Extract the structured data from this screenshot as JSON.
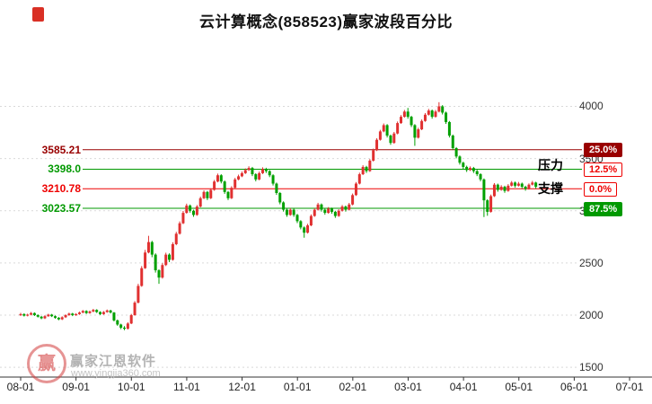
{
  "title": "云计算概念(858523)赢家波段百分比",
  "annotations": {
    "resistance": "压力",
    "support": "支撑"
  },
  "watermark": {
    "logo_char": "赢",
    "brand": "赢家江恩软件",
    "url": "www.yingjia360.com"
  },
  "chart_data": {
    "type": "candlestick",
    "title": "云计算概念(858523)赢家波段百分比",
    "up_color": "#e03030",
    "down_color": "#00a000",
    "grid_color": "#d9d9d9",
    "axis_color": "#333333",
    "y_ticks": [
      4000,
      3500,
      3000,
      2500,
      2000,
      1500
    ],
    "x_tick_labels": [
      "08-01",
      "09-01",
      "10-01",
      "11-01",
      "12-01",
      "01-01",
      "02-01",
      "03-01",
      "04-01",
      "05-01",
      "06-01",
      "07-01"
    ],
    "ylim": [
      1450,
      4200
    ],
    "levels": [
      {
        "label": "3585.21",
        "price": 3585.21,
        "pct": "25.0%",
        "line_color": "#990000",
        "tag_bg": "#990000",
        "tag_text": "#ffffff",
        "tag_border": "#990000"
      },
      {
        "label": "3398.0",
        "price": 3398.0,
        "pct": "12.5%",
        "line_color": "#009900",
        "tag_bg": "#ffffff",
        "tag_text": "#ee0000",
        "tag_border": "#ee0000"
      },
      {
        "label": "3210.78",
        "price": 3210.78,
        "pct": "0.0%",
        "line_color": "#ee0000",
        "tag_bg": "#ffffff",
        "tag_text": "#ee0000",
        "tag_border": "#ee0000"
      },
      {
        "label": "3023.57",
        "price": 3023.57,
        "pct": "87.5%",
        "line_color": "#009900",
        "tag_bg": "#009900",
        "tag_text": "#ffffff",
        "tag_border": "#009900"
      }
    ],
    "ohlc": [
      [
        2000,
        2022,
        1992,
        2010
      ],
      [
        2010,
        2018,
        1987,
        1995
      ],
      [
        1995,
        2014,
        1988,
        2005
      ],
      [
        2005,
        2030,
        1998,
        2020
      ],
      [
        2020,
        2026,
        1992,
        2000
      ],
      [
        2000,
        2008,
        1977,
        1985
      ],
      [
        1985,
        1992,
        1961,
        1970
      ],
      [
        1970,
        1999,
        1963,
        1990
      ],
      [
        1990,
        2013,
        1984,
        2005
      ],
      [
        2005,
        2012,
        1982,
        1990
      ],
      [
        1990,
        1997,
        1966,
        1975
      ],
      [
        1975,
        1982,
        1951,
        1960
      ],
      [
        1960,
        1989,
        1953,
        1980
      ],
      [
        1980,
        2008,
        1973,
        2000
      ],
      [
        2000,
        2024,
        1994,
        2015
      ],
      [
        2015,
        2022,
        1991,
        2000
      ],
      [
        2000,
        2019,
        1993,
        2010
      ],
      [
        2010,
        2034,
        2003,
        2025
      ],
      [
        2025,
        2049,
        2018,
        2040
      ],
      [
        2040,
        2047,
        2011,
        2020
      ],
      [
        2020,
        2044,
        2013,
        2035
      ],
      [
        2035,
        2060,
        2028,
        2050
      ],
      [
        2050,
        2057,
        2021,
        2030
      ],
      [
        2030,
        2037,
        2001,
        2010
      ],
      [
        2010,
        2039,
        2003,
        2030
      ],
      [
        2030,
        2054,
        2023,
        2045
      ],
      [
        2045,
        2052,
        2016,
        2025
      ],
      [
        2025,
        2030,
        1940,
        1950
      ],
      [
        1950,
        1958,
        1898,
        1910
      ],
      [
        1910,
        1918,
        1866,
        1880
      ],
      [
        1880,
        1895,
        1856,
        1870
      ],
      [
        1870,
        1932,
        1862,
        1920
      ],
      [
        1920,
        2012,
        1914,
        2000
      ],
      [
        2000,
        2135,
        1995,
        2120
      ],
      [
        2120,
        2300,
        2112,
        2280
      ],
      [
        2280,
        2470,
        2272,
        2450
      ],
      [
        2450,
        2625,
        2443,
        2600
      ],
      [
        2600,
        2760,
        2592,
        2700
      ],
      [
        2700,
        2712,
        2555,
        2580
      ],
      [
        2580,
        2592,
        2408,
        2430
      ],
      [
        2430,
        2440,
        2300,
        2360
      ],
      [
        2360,
        2498,
        2350,
        2480
      ],
      [
        2480,
        2598,
        2470,
        2580
      ],
      [
        2580,
        2592,
        2508,
        2530
      ],
      [
        2530,
        2698,
        2522,
        2680
      ],
      [
        2680,
        2798,
        2670,
        2780
      ],
      [
        2780,
        2898,
        2772,
        2880
      ],
      [
        2880,
        2998,
        2872,
        2980
      ],
      [
        2980,
        3068,
        2972,
        3050
      ],
      [
        3050,
        3060,
        2982,
        3000
      ],
      [
        3000,
        3010,
        2942,
        2960
      ],
      [
        2960,
        3055,
        2952,
        3040
      ],
      [
        3040,
        3135,
        3032,
        3120
      ],
      [
        3120,
        3196,
        3112,
        3180
      ],
      [
        3180,
        3190,
        3102,
        3120
      ],
      [
        3120,
        3215,
        3112,
        3200
      ],
      [
        3200,
        3295,
        3192,
        3280
      ],
      [
        3280,
        3356,
        3272,
        3340
      ],
      [
        3340,
        3350,
        3262,
        3280
      ],
      [
        3280,
        3290,
        3162,
        3180
      ],
      [
        3180,
        3190,
        3102,
        3120
      ],
      [
        3120,
        3235,
        3112,
        3220
      ],
      [
        3220,
        3315,
        3212,
        3300
      ],
      [
        3300,
        3346,
        3292,
        3330
      ],
      [
        3330,
        3376,
        3322,
        3360
      ],
      [
        3360,
        3406,
        3352,
        3390
      ],
      [
        3390,
        3426,
        3382,
        3410
      ],
      [
        3410,
        3420,
        3332,
        3350
      ],
      [
        3350,
        3360,
        3282,
        3300
      ],
      [
        3300,
        3375,
        3292,
        3360
      ],
      [
        3360,
        3416,
        3352,
        3400
      ],
      [
        3400,
        3412,
        3362,
        3380
      ],
      [
        3380,
        3390,
        3322,
        3340
      ],
      [
        3340,
        3350,
        3242,
        3260
      ],
      [
        3260,
        3270,
        3152,
        3170
      ],
      [
        3170,
        3180,
        3062,
        3080
      ],
      [
        3080,
        3090,
        2992,
        3010
      ],
      [
        3010,
        3020,
        2942,
        2960
      ],
      [
        2960,
        3025,
        2952,
        3010
      ],
      [
        3010,
        3020,
        2942,
        2960
      ],
      [
        2960,
        2970,
        2882,
        2900
      ],
      [
        2900,
        2910,
        2822,
        2840
      ],
      [
        2840,
        2850,
        2742,
        2790
      ],
      [
        2790,
        2875,
        2782,
        2860
      ],
      [
        2860,
        2965,
        2852,
        2950
      ],
      [
        2950,
        3025,
        2942,
        3010
      ],
      [
        3010,
        3076,
        3002,
        3060
      ],
      [
        3060,
        3070,
        2992,
        3010
      ],
      [
        3010,
        3020,
        2962,
        2980
      ],
      [
        2980,
        3035,
        2972,
        3020
      ],
      [
        3020,
        3030,
        2972,
        2990
      ],
      [
        2990,
        3000,
        2932,
        2950
      ],
      [
        2950,
        3015,
        2942,
        3000
      ],
      [
        3000,
        3055,
        2992,
        3040
      ],
      [
        3040,
        3050,
        2992,
        3010
      ],
      [
        3010,
        3075,
        3002,
        3060
      ],
      [
        3060,
        3165,
        3052,
        3150
      ],
      [
        3150,
        3275,
        3142,
        3260
      ],
      [
        3260,
        3365,
        3252,
        3350
      ],
      [
        3350,
        3436,
        3342,
        3420
      ],
      [
        3420,
        3430,
        3362,
        3380
      ],
      [
        3380,
        3495,
        3372,
        3480
      ],
      [
        3480,
        3595,
        3472,
        3580
      ],
      [
        3580,
        3695,
        3572,
        3680
      ],
      [
        3680,
        3775,
        3672,
        3760
      ],
      [
        3760,
        3836,
        3752,
        3820
      ],
      [
        3820,
        3830,
        3702,
        3720
      ],
      [
        3720,
        3730,
        3632,
        3650
      ],
      [
        3650,
        3755,
        3642,
        3740
      ],
      [
        3740,
        3855,
        3732,
        3840
      ],
      [
        3840,
        3916,
        3832,
        3900
      ],
      [
        3900,
        3966,
        3892,
        3950
      ],
      [
        3950,
        3985,
        3882,
        3900
      ],
      [
        3900,
        3910,
        3802,
        3820
      ],
      [
        3820,
        3830,
        3622,
        3700
      ],
      [
        3700,
        3795,
        3692,
        3780
      ],
      [
        3780,
        3875,
        3772,
        3860
      ],
      [
        3860,
        3936,
        3852,
        3920
      ],
      [
        3920,
        3976,
        3912,
        3960
      ],
      [
        3960,
        3970,
        3882,
        3900
      ],
      [
        3900,
        3965,
        3892,
        3950
      ],
      [
        3950,
        4040,
        3942,
        4000
      ],
      [
        4000,
        4012,
        3922,
        3940
      ],
      [
        3940,
        3950,
        3832,
        3850
      ],
      [
        3850,
        3860,
        3702,
        3720
      ],
      [
        3720,
        3730,
        3582,
        3600
      ],
      [
        3600,
        3610,
        3502,
        3520
      ],
      [
        3520,
        3530,
        3442,
        3460
      ],
      [
        3460,
        3470,
        3402,
        3420
      ],
      [
        3420,
        3432,
        3372,
        3390
      ],
      [
        3390,
        3425,
        3382,
        3410
      ],
      [
        3410,
        3420,
        3362,
        3380
      ],
      [
        3380,
        3392,
        3332,
        3350
      ],
      [
        3350,
        3360,
        3282,
        3300
      ],
      [
        3300,
        3310,
        2940,
        3100
      ],
      [
        3100,
        3110,
        2952,
        2990
      ],
      [
        2990,
        3155,
        2982,
        3140
      ],
      [
        3140,
        3265,
        3132,
        3250
      ],
      [
        3250,
        3260,
        3182,
        3200
      ],
      [
        3200,
        3245,
        3192,
        3230
      ],
      [
        3230,
        3240,
        3172,
        3190
      ],
      [
        3190,
        3255,
        3182,
        3240
      ],
      [
        3240,
        3285,
        3232,
        3270
      ],
      [
        3270,
        3280,
        3222,
        3240
      ],
      [
        3240,
        3276,
        3232,
        3260
      ],
      [
        3260,
        3270,
        3212,
        3230
      ],
      [
        3230,
        3240,
        3192,
        3210
      ],
      [
        3210,
        3262,
        3202,
        3250
      ],
      [
        3250,
        3286,
        3242,
        3270
      ],
      [
        3270,
        3278,
        3212,
        3230
      ]
    ]
  }
}
